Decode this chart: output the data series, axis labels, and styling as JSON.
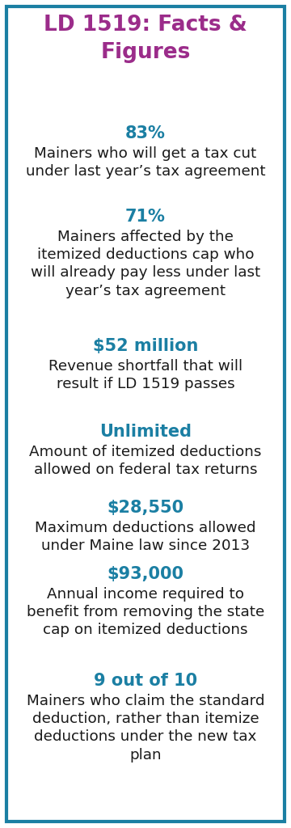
{
  "title": "LD 1519: Facts &\nFigures",
  "title_color": "#9B2C8A",
  "highlight_color": "#1B7FA3",
  "text_color": "#1a1a1a",
  "bg_color": "#ffffff",
  "border_color": "#1B7FA3",
  "items": [
    {
      "stat": "83%",
      "desc": "Mainers who will get a tax cut\nunder last year’s tax agreement"
    },
    {
      "stat": "71%",
      "desc": "Mainers affected by the\nitemized deductions cap who\nwill already pay less under last\nyear’s tax agreement"
    },
    {
      "stat": "$52 million",
      "desc": "Revenue shortfall that will\nresult if LD 1519 passes"
    },
    {
      "stat": "Unlimited",
      "desc": "Amount of itemized deductions\nallowed on federal tax returns"
    },
    {
      "stat": "$28,550",
      "desc": "Maximum deductions allowed\nunder Maine law since 2013"
    },
    {
      "stat": "$93,000",
      "desc": "Annual income required to\nbenefit from removing the state\ncap on itemized deductions"
    },
    {
      "stat": "9 out of 10",
      "desc": "Mainers who claim the standard\ndeduction, rather than itemize\ndeductions under the new tax\nplan"
    }
  ],
  "fig_width": 3.6,
  "fig_height": 10.24,
  "dpi": 100
}
